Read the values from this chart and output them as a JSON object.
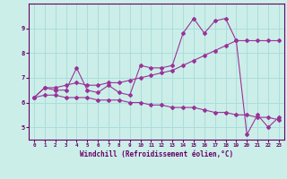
{
  "xlabel": "Windchill (Refroidissement éolien,°C)",
  "ylabel": "",
  "xlim": [
    -0.5,
    23.5
  ],
  "ylim": [
    4.5,
    10.0
  ],
  "xticks": [
    0,
    1,
    2,
    3,
    4,
    5,
    6,
    7,
    8,
    9,
    10,
    11,
    12,
    13,
    14,
    15,
    16,
    17,
    18,
    19,
    20,
    21,
    22,
    23
  ],
  "yticks": [
    5,
    6,
    7,
    8,
    9
  ],
  "background_color": "#cceee8",
  "grid_color": "#aadddd",
  "line_color": "#993399",
  "line1_x": [
    0,
    1,
    2,
    3,
    4,
    5,
    6,
    7,
    8,
    9,
    10,
    11,
    12,
    13,
    14,
    15,
    16,
    17,
    18,
    19,
    20,
    21,
    22,
    23
  ],
  "line1_y": [
    6.2,
    6.6,
    6.5,
    6.5,
    7.4,
    6.5,
    6.4,
    6.7,
    6.4,
    6.3,
    7.5,
    7.4,
    7.4,
    7.5,
    8.8,
    9.4,
    8.8,
    9.3,
    9.4,
    8.5,
    4.7,
    5.5,
    5.0,
    5.4
  ],
  "line2_x": [
    0,
    1,
    2,
    3,
    4,
    5,
    6,
    7,
    8,
    9,
    10,
    11,
    12,
    13,
    14,
    15,
    16,
    17,
    18,
    19,
    20,
    21,
    22,
    23
  ],
  "line2_y": [
    6.2,
    6.6,
    6.6,
    6.7,
    6.8,
    6.7,
    6.7,
    6.8,
    6.8,
    6.9,
    7.0,
    7.1,
    7.2,
    7.3,
    7.5,
    7.7,
    7.9,
    8.1,
    8.3,
    8.5,
    8.5,
    8.5,
    8.5,
    8.5
  ],
  "line3_x": [
    0,
    1,
    2,
    3,
    4,
    5,
    6,
    7,
    8,
    9,
    10,
    11,
    12,
    13,
    14,
    15,
    16,
    17,
    18,
    19,
    20,
    21,
    22,
    23
  ],
  "line3_y": [
    6.2,
    6.3,
    6.3,
    6.2,
    6.2,
    6.2,
    6.1,
    6.1,
    6.1,
    6.0,
    6.0,
    5.9,
    5.9,
    5.8,
    5.8,
    5.8,
    5.7,
    5.6,
    5.6,
    5.5,
    5.5,
    5.4,
    5.4,
    5.3
  ],
  "spine_color": "#660066"
}
